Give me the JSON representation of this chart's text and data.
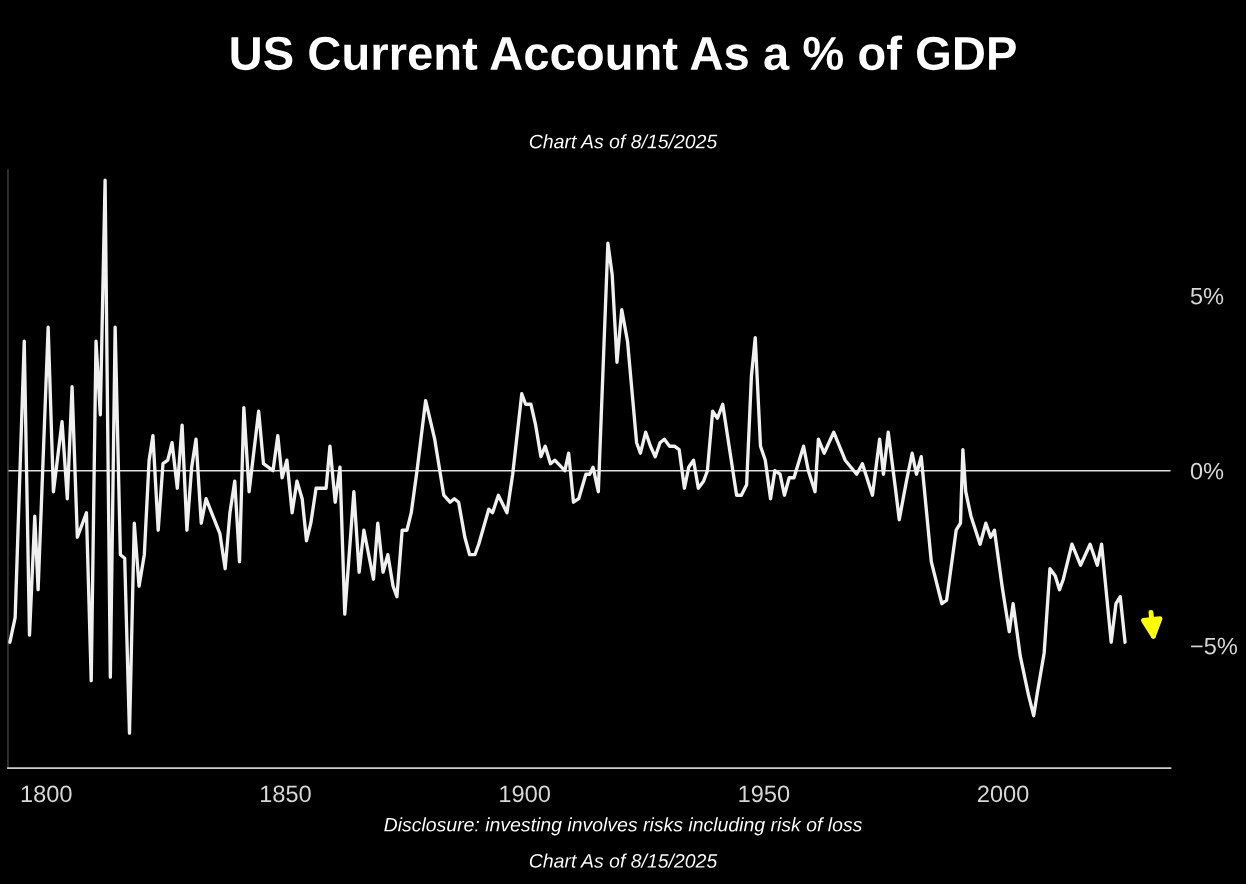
{
  "chart_data": {
    "type": "line",
    "title": "US Current Account As a % of GDP",
    "subtitle": "Chart As of 8/15/2025",
    "annotations": [
      "Disclosure: investing involves risks including risk of loss",
      "Chart As of 8/15/2025"
    ],
    "x": [
      1792.4,
      1793.5,
      1795.4,
      1796.5,
      1797.6,
      1798.3,
      1800.4,
      1801.5,
      1803.3,
      1804.4,
      1805.4,
      1806.5,
      1808.4,
      1809.4,
      1810.4,
      1811.3,
      1812.3,
      1813.4,
      1814.4,
      1815.5,
      1816.4,
      1817.4,
      1818.4,
      1819.4,
      1820.5,
      1821.5,
      1822.3,
      1823.4,
      1824.4,
      1825.4,
      1826.3,
      1827.4,
      1828.4,
      1829.4,
      1830.4,
      1831.3,
      1832.4,
      1833.4,
      1836.3,
      1837.4,
      1838.4,
      1839.4,
      1840.4,
      1841.3,
      1842.4,
      1844.4,
      1845.4,
      1846.4,
      1847.4,
      1848.4,
      1849.3,
      1850.3,
      1851.4,
      1852.4,
      1853.5,
      1854.4,
      1855.3,
      1856.4,
      1858.5,
      1859.3,
      1860.4,
      1861.4,
      1862.4,
      1864.3,
      1865.4,
      1866.4,
      1868.4,
      1869.3,
      1870.4,
      1871.4,
      1872.5,
      1873.3,
      1874.4,
      1875.4,
      1876.3,
      1877.5,
      1879.3,
      1881.2,
      1883.1,
      1884.4,
      1885.3,
      1886.2,
      1887.5,
      1888.5,
      1889.6,
      1890.4,
      1892.5,
      1893.3,
      1894.5,
      1896.3,
      1897.5,
      1899.4,
      1900.2,
      1901.3,
      1902.3,
      1903.4,
      1904.3,
      1905.4,
      1906.3,
      1908.4,
      1909.2,
      1910.2,
      1911.3,
      1912.8,
      1913.6,
      1914.3,
      1915.4,
      1917.4,
      1918.3,
      1919.3,
      1920.3,
      1921.5,
      1923.4,
      1924.2,
      1925.3,
      1926.3,
      1927.3,
      1928.3,
      1929.2,
      1930.3,
      1931.3,
      1932.3,
      1933.4,
      1934.3,
      1935.3,
      1936.3,
      1937.4,
      1938.2,
      1939.3,
      1940.3,
      1941.4,
      1944.3,
      1945.3,
      1946.4,
      1947.4,
      1948.2,
      1949.3,
      1950.3,
      1951.4,
      1952.3,
      1953.4,
      1954.3,
      1955.3,
      1956.3,
      1958.3,
      1959.3,
      1960.7,
      1961.4,
      1962.6,
      1964.6,
      1967.0,
      1969.4,
      1970.6,
      1972.7,
      1974.2,
      1975.0,
      1976.0,
      1977.5,
      1978.3,
      1979.8,
      1981.0,
      1981.9,
      1982.9,
      1985.0,
      1987.2,
      1988.2,
      1990.2,
      1991.1,
      1991.6,
      1992.2,
      1993.3,
      1995.2,
      1996.4,
      1997.4,
      1998.2,
      1999.8,
      2001.3,
      2002.1,
      2003.6,
      2005.3,
      2006.4,
      2007.1,
      2008.6,
      2009.8,
      2010.9,
      2011.8,
      2012.6,
      2014.4,
      2016.2,
      2018.2,
      2019.7,
      2020.6,
      2022.6,
      2023.6,
      2024.5,
      2025.5
    ],
    "series": [
      {
        "color": "#f0f0f0",
        "values": [
          -4.9,
          -4.2,
          3.7,
          -4.7,
          -1.3,
          -3.4,
          4.1,
          -0.6,
          1.4,
          -0.8,
          2.4,
          -1.9,
          -1.2,
          -6.0,
          3.7,
          1.6,
          8.3,
          -5.9,
          4.1,
          -2.4,
          -2.5,
          -7.5,
          -1.5,
          -3.3,
          -2.4,
          0.3,
          1.0,
          -1.7,
          0.2,
          0.3,
          0.8,
          -0.5,
          1.3,
          -1.7,
          0.1,
          0.9,
          -1.5,
          -0.8,
          -1.8,
          -2.8,
          -1.2,
          -0.3,
          -2.6,
          1.8,
          -0.6,
          1.7,
          0.2,
          0.1,
          0,
          1.0,
          -0.2,
          0.3,
          -1.2,
          -0.3,
          -0.8,
          -2.0,
          -1.5,
          -0.5,
          -0.5,
          0.7,
          -0.9,
          0.1,
          -4.1,
          -0.6,
          -2.9,
          -1.7,
          -3.1,
          -1.5,
          -2.9,
          -2.4,
          -3.3,
          -3.6,
          -1.7,
          -1.7,
          -1.2,
          0,
          2.0,
          0.9,
          -0.7,
          -0.9,
          -0.8,
          -0.9,
          -1.9,
          -2.4,
          -2.4,
          -2.1,
          -1.1,
          -1.2,
          -0.7,
          -1.2,
          -0.1,
          2.2,
          1.9,
          1.9,
          1.3,
          0.4,
          0.7,
          0.2,
          0.3,
          0,
          0.5,
          -0.9,
          -0.8,
          -0.1,
          -0.1,
          0.1,
          -0.6,
          6.5,
          5.6,
          3.1,
          4.6,
          3.7,
          0.8,
          0.5,
          1.1,
          0.7,
          0.4,
          0.8,
          0.9,
          0.7,
          0.7,
          0.6,
          -0.5,
          0.1,
          0.3,
          -0.5,
          -0.3,
          0,
          1.7,
          1.5,
          1.9,
          -0.7,
          -0.7,
          -0.4,
          2.7,
          3.8,
          0.7,
          0.3,
          -0.8,
          0,
          -0.1,
          -0.7,
          -0.2,
          -0.2,
          0.7,
          0,
          -0.6,
          0.9,
          0.5,
          1.1,
          0.3,
          -0.1,
          0.2,
          -0.7,
          0.9,
          -0.1,
          1.1,
          -0.5,
          -1.4,
          -0.3,
          0.5,
          -0.1,
          0.4,
          -2.6,
          -3.8,
          -3.7,
          -1.7,
          -1.5,
          0.6,
          -0.6,
          -1.3,
          -2.1,
          -1.5,
          -1.9,
          -1.7,
          -3.3,
          -4.6,
          -3.8,
          -5.3,
          -6.4,
          -7.0,
          -6.4,
          -5.2,
          -2.8,
          -3.0,
          -3.4,
          -3.1,
          -2.1,
          -2.7,
          -2.1,
          -2.7,
          -2.1,
          -4.9,
          -3.8,
          -3.6,
          -4.9
        ]
      }
    ],
    "xlim": [
      1792,
      2035
    ],
    "xticks": [
      1800,
      1850,
      1900,
      1950,
      2000
    ],
    "ylim": [
      -8.5,
      8.6
    ],
    "yticks": [
      {
        "value": 5,
        "label": "5%"
      },
      {
        "value": 0,
        "label": "0%"
      },
      {
        "value": -5,
        "label": "−5%"
      }
    ],
    "ref_lines": [
      {
        "axis": "y",
        "value": 0,
        "color": "#e0e0e0"
      }
    ],
    "grid": false
  }
}
